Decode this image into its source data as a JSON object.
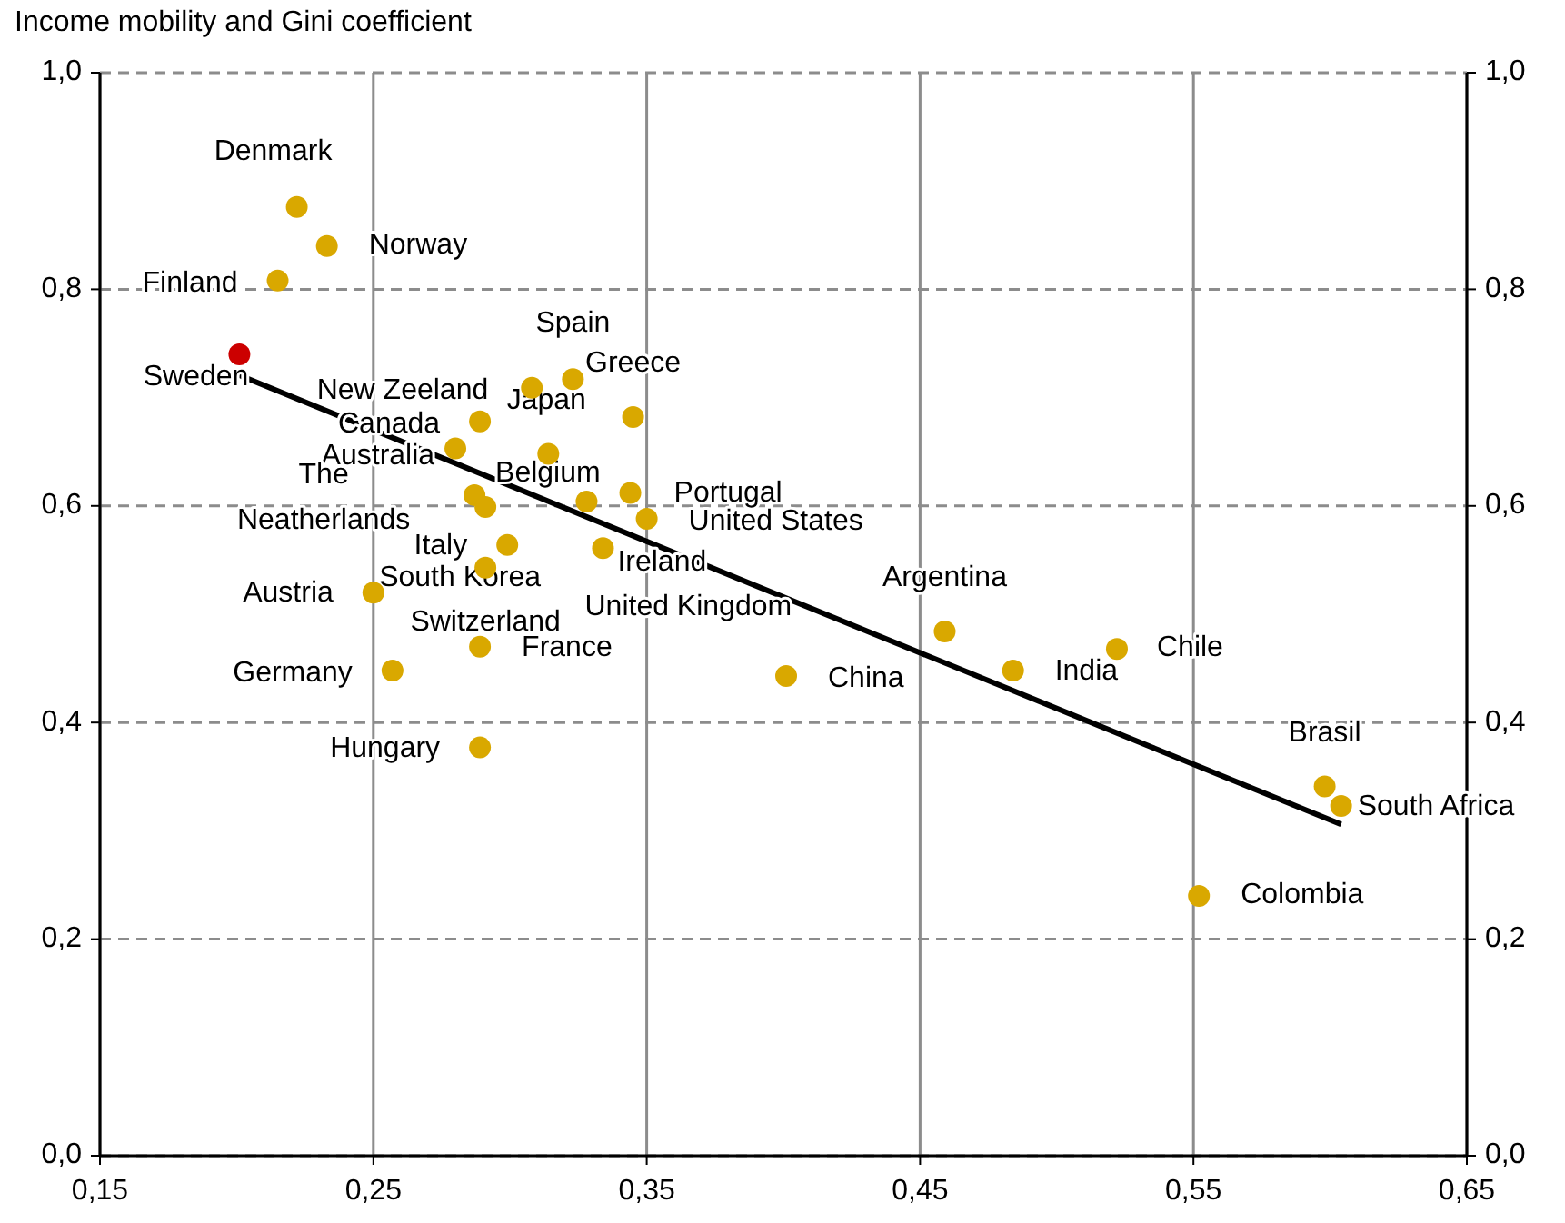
{
  "chart_data": {
    "type": "scatter",
    "title": "Income mobility and Gini coefficient",
    "xlim": [
      0.15,
      0.65
    ],
    "xticks": [
      {
        "value": 0.15,
        "label": "0,15"
      },
      {
        "value": 0.25,
        "label": "0,25"
      },
      {
        "value": 0.35,
        "label": "0,35"
      },
      {
        "value": 0.45,
        "label": "0,45"
      },
      {
        "value": 0.55,
        "label": "0,55"
      },
      {
        "value": 0.65,
        "label": "0,65"
      }
    ],
    "ylim": [
      0,
      1
    ],
    "yticks": [
      {
        "value": 0,
        "label": "0,0"
      },
      {
        "value": 0.2,
        "label": "0,2"
      },
      {
        "value": 0.4,
        "label": "0,4"
      },
      {
        "value": 0.6,
        "label": "0,6"
      },
      {
        "value": 0.8,
        "label": "0,8"
      },
      {
        "value": 1,
        "label": "1,0"
      }
    ],
    "y2lim": [
      0,
      1
    ],
    "y2ticks": [
      {
        "value": 0,
        "label": "0,0"
      },
      {
        "value": 0.2,
        "label": "0,2"
      },
      {
        "value": 0.4,
        "label": "0,4"
      },
      {
        "value": 0.6,
        "label": "0,6"
      },
      {
        "value": 0.8,
        "label": "0,8"
      },
      {
        "value": 1,
        "label": "1,0"
      }
    ],
    "grid": true,
    "marker": "circle",
    "series": [
      {
        "type": "scatter",
        "x": [
          0.222,
          0.233,
          0.215,
          0.201,
          0.323,
          0.345,
          0.314,
          0.308,
          0.289,
          0.28,
          0.287,
          0.291,
          0.344,
          0.35,
          0.299,
          0.328,
          0.334,
          0.291,
          0.25,
          0.289,
          0.257,
          0.289,
          0.401,
          0.459,
          0.484,
          0.522,
          0.598,
          0.604,
          0.552
        ],
        "values": [
          0.876,
          0.84,
          0.808,
          0.74,
          0.717,
          0.682,
          0.648,
          0.709,
          0.678,
          0.653,
          0.61,
          0.599,
          0.612,
          0.588,
          0.564,
          0.604,
          0.561,
          0.543,
          0.52,
          0.47,
          0.448,
          0.377,
          0.443,
          0.484,
          0.448,
          0.468,
          0.341,
          0.323,
          0.24
        ],
        "colors": [
          "#d9a800",
          "#d9a800",
          "#d9a800",
          "#cc0000",
          "#d9a800",
          "#d9a800",
          "#d9a800",
          "#d9a800",
          "#d9a800",
          "#d9a800",
          "#d9a800",
          "#d9a800",
          "#d9a800",
          "#d9a800",
          "#d9a800",
          "#d9a800",
          "#d9a800",
          "#d9a800",
          "#d9a800",
          "#d9a800",
          "#d9a800",
          "#d9a800",
          "#d9a800",
          "#d9a800",
          "#d9a800",
          "#d9a800",
          "#d9a800",
          "#d9a800",
          "#d9a800"
        ]
      },
      {
        "type": "line",
        "x": [
          0.2006,
          0.604
        ],
        "values": [
          0.721,
          0.306
        ],
        "color": "#000000",
        "marker": "none"
      }
    ],
    "annotations": [
      {
        "text": "Denmark",
        "x": 0.222,
        "y": 0.876
      },
      {
        "text": "Norway",
        "x": 0.233,
        "y": 0.84
      },
      {
        "text": "Finland",
        "x": 0.215,
        "y": 0.808
      },
      {
        "text": "Sweden",
        "x": 0.201,
        "y": 0.74
      },
      {
        "text": "Spain",
        "x": 0.323,
        "y": 0.717
      },
      {
        "text": "Greece",
        "x": 0.345,
        "y": 0.682
      },
      {
        "text": "Japan",
        "x": 0.314,
        "y": 0.648
      },
      {
        "text": "New Zeeland",
        "x": 0.308,
        "y": 0.709
      },
      {
        "text": "Canada",
        "x": 0.289,
        "y": 0.678
      },
      {
        "text": "Belgium",
        "x": 0.28,
        "y": 0.653
      },
      {
        "text": "Australia",
        "x": 0.287,
        "y": 0.61
      },
      {
        "text": "The\nNeatherlands",
        "x": 0.291,
        "y": 0.599
      },
      {
        "text": "Portugal",
        "x": 0.344,
        "y": 0.612
      },
      {
        "text": "United States",
        "x": 0.35,
        "y": 0.588
      },
      {
        "text": "Italy",
        "x": 0.299,
        "y": 0.564
      },
      {
        "text": "Ireland",
        "x": 0.328,
        "y": 0.604
      },
      {
        "text": "United Kingdom",
        "x": 0.334,
        "y": 0.561
      },
      {
        "text": "South Korea",
        "x": 0.291,
        "y": 0.543
      },
      {
        "text": "Austria",
        "x": 0.25,
        "y": 0.52
      },
      {
        "text": "Switzerland",
        "x": 0.289,
        "y": 0.47
      },
      {
        "text": "France",
        "x": 0.289,
        "y": 0.47
      },
      {
        "text": "Germany",
        "x": 0.257,
        "y": 0.448
      },
      {
        "text": "Hungary",
        "x": 0.289,
        "y": 0.377
      },
      {
        "text": "China",
        "x": 0.401,
        "y": 0.443
      },
      {
        "text": "Argentina",
        "x": 0.459,
        "y": 0.484
      },
      {
        "text": "India",
        "x": 0.484,
        "y": 0.448
      },
      {
        "text": "Chile",
        "x": 0.522,
        "y": 0.468
      },
      {
        "text": "Brasil",
        "x": 0.598,
        "y": 0.341
      },
      {
        "text": "South Africa",
        "x": 0.604,
        "y": 0.323
      },
      {
        "text": "Colombia",
        "x": 0.552,
        "y": 0.24
      }
    ]
  }
}
